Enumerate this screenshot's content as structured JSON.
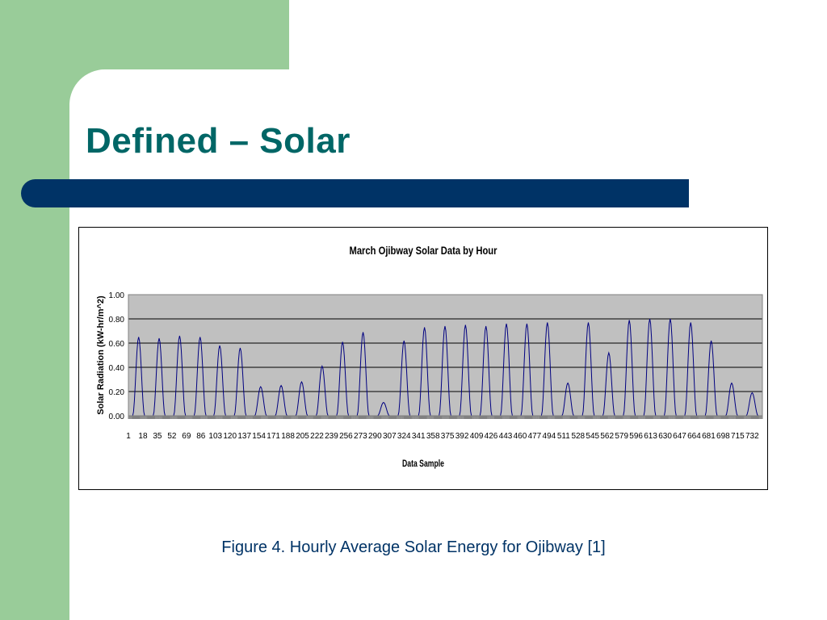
{
  "slide": {
    "title": "Defined – Solar",
    "caption": "Figure 4. Hourly Average Solar Energy for Ojibway [1]"
  },
  "colors": {
    "sidebar_green": "#99cc99",
    "title_teal": "#006666",
    "bar_navy": "#003366",
    "plot_background": "#c0c0c0",
    "series_line": "#000080"
  },
  "chart_data": {
    "type": "line",
    "title": "March Ojibway Solar Data by Hour",
    "xlabel": "Data Sample",
    "ylabel": "Solar Radiation (kW-hr/m^2)",
    "ylim": [
      0,
      1.0
    ],
    "xlim": [
      1,
      744
    ],
    "y_ticks": [
      "0.00",
      "0.20",
      "0.40",
      "0.60",
      "0.80",
      "1.00"
    ],
    "x_tick_labels": [
      "1",
      "18",
      "35",
      "52",
      "69",
      "86",
      "103",
      "120",
      "137",
      "154",
      "171",
      "188",
      "205",
      "222",
      "239",
      "256",
      "273",
      "290",
      "307",
      "324",
      "341",
      "358",
      "375",
      "392",
      "409",
      "426",
      "443",
      "460",
      "477",
      "494",
      "511",
      "528",
      "545",
      "562",
      "579",
      "596",
      "613",
      "630",
      "647",
      "664",
      "681",
      "698",
      "715",
      "732"
    ],
    "grid": true,
    "legend": "none",
    "series": [
      {
        "daily_peaks": [
          {
            "x": 13,
            "y": 0.65
          },
          {
            "x": 37,
            "y": 0.64
          },
          {
            "x": 61,
            "y": 0.66
          },
          {
            "x": 85,
            "y": 0.65
          },
          {
            "x": 108,
            "y": 0.58
          },
          {
            "x": 132,
            "y": 0.56
          },
          {
            "x": 156,
            "y": 0.24
          },
          {
            "x": 180,
            "y": 0.25
          },
          {
            "x": 204,
            "y": 0.28
          },
          {
            "x": 228,
            "y": 0.41
          },
          {
            "x": 252,
            "y": 0.61
          },
          {
            "x": 276,
            "y": 0.69
          },
          {
            "x": 300,
            "y": 0.11
          },
          {
            "x": 324,
            "y": 0.62
          },
          {
            "x": 348,
            "y": 0.73
          },
          {
            "x": 372,
            "y": 0.74
          },
          {
            "x": 396,
            "y": 0.75
          },
          {
            "x": 420,
            "y": 0.74
          },
          {
            "x": 444,
            "y": 0.76
          },
          {
            "x": 468,
            "y": 0.76
          },
          {
            "x": 492,
            "y": 0.77
          },
          {
            "x": 516,
            "y": 0.27
          },
          {
            "x": 540,
            "y": 0.77
          },
          {
            "x": 564,
            "y": 0.52
          },
          {
            "x": 588,
            "y": 0.79
          },
          {
            "x": 612,
            "y": 0.8
          },
          {
            "x": 636,
            "y": 0.8
          },
          {
            "x": 660,
            "y": 0.77
          },
          {
            "x": 684,
            "y": 0.62
          },
          {
            "x": 708,
            "y": 0.27
          },
          {
            "x": 732,
            "y": 0.19
          }
        ]
      }
    ]
  }
}
